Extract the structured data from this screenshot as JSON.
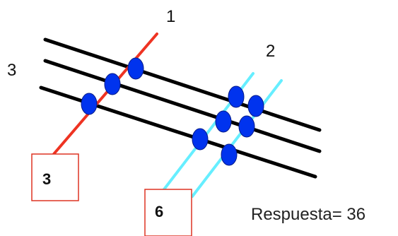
{
  "labels": {
    "group_left": "3",
    "group_red": "1",
    "group_cyan": "2"
  },
  "boxes": {
    "red_count": "3",
    "cyan_count": "6"
  },
  "answer": "Respuesta= 36",
  "colors": {
    "black_lines": "#000000",
    "red_line": "#ee3322",
    "cyan_lines": "#66eeff",
    "intersection_dot": "#0033ee",
    "box_border": "#dd3322"
  }
}
